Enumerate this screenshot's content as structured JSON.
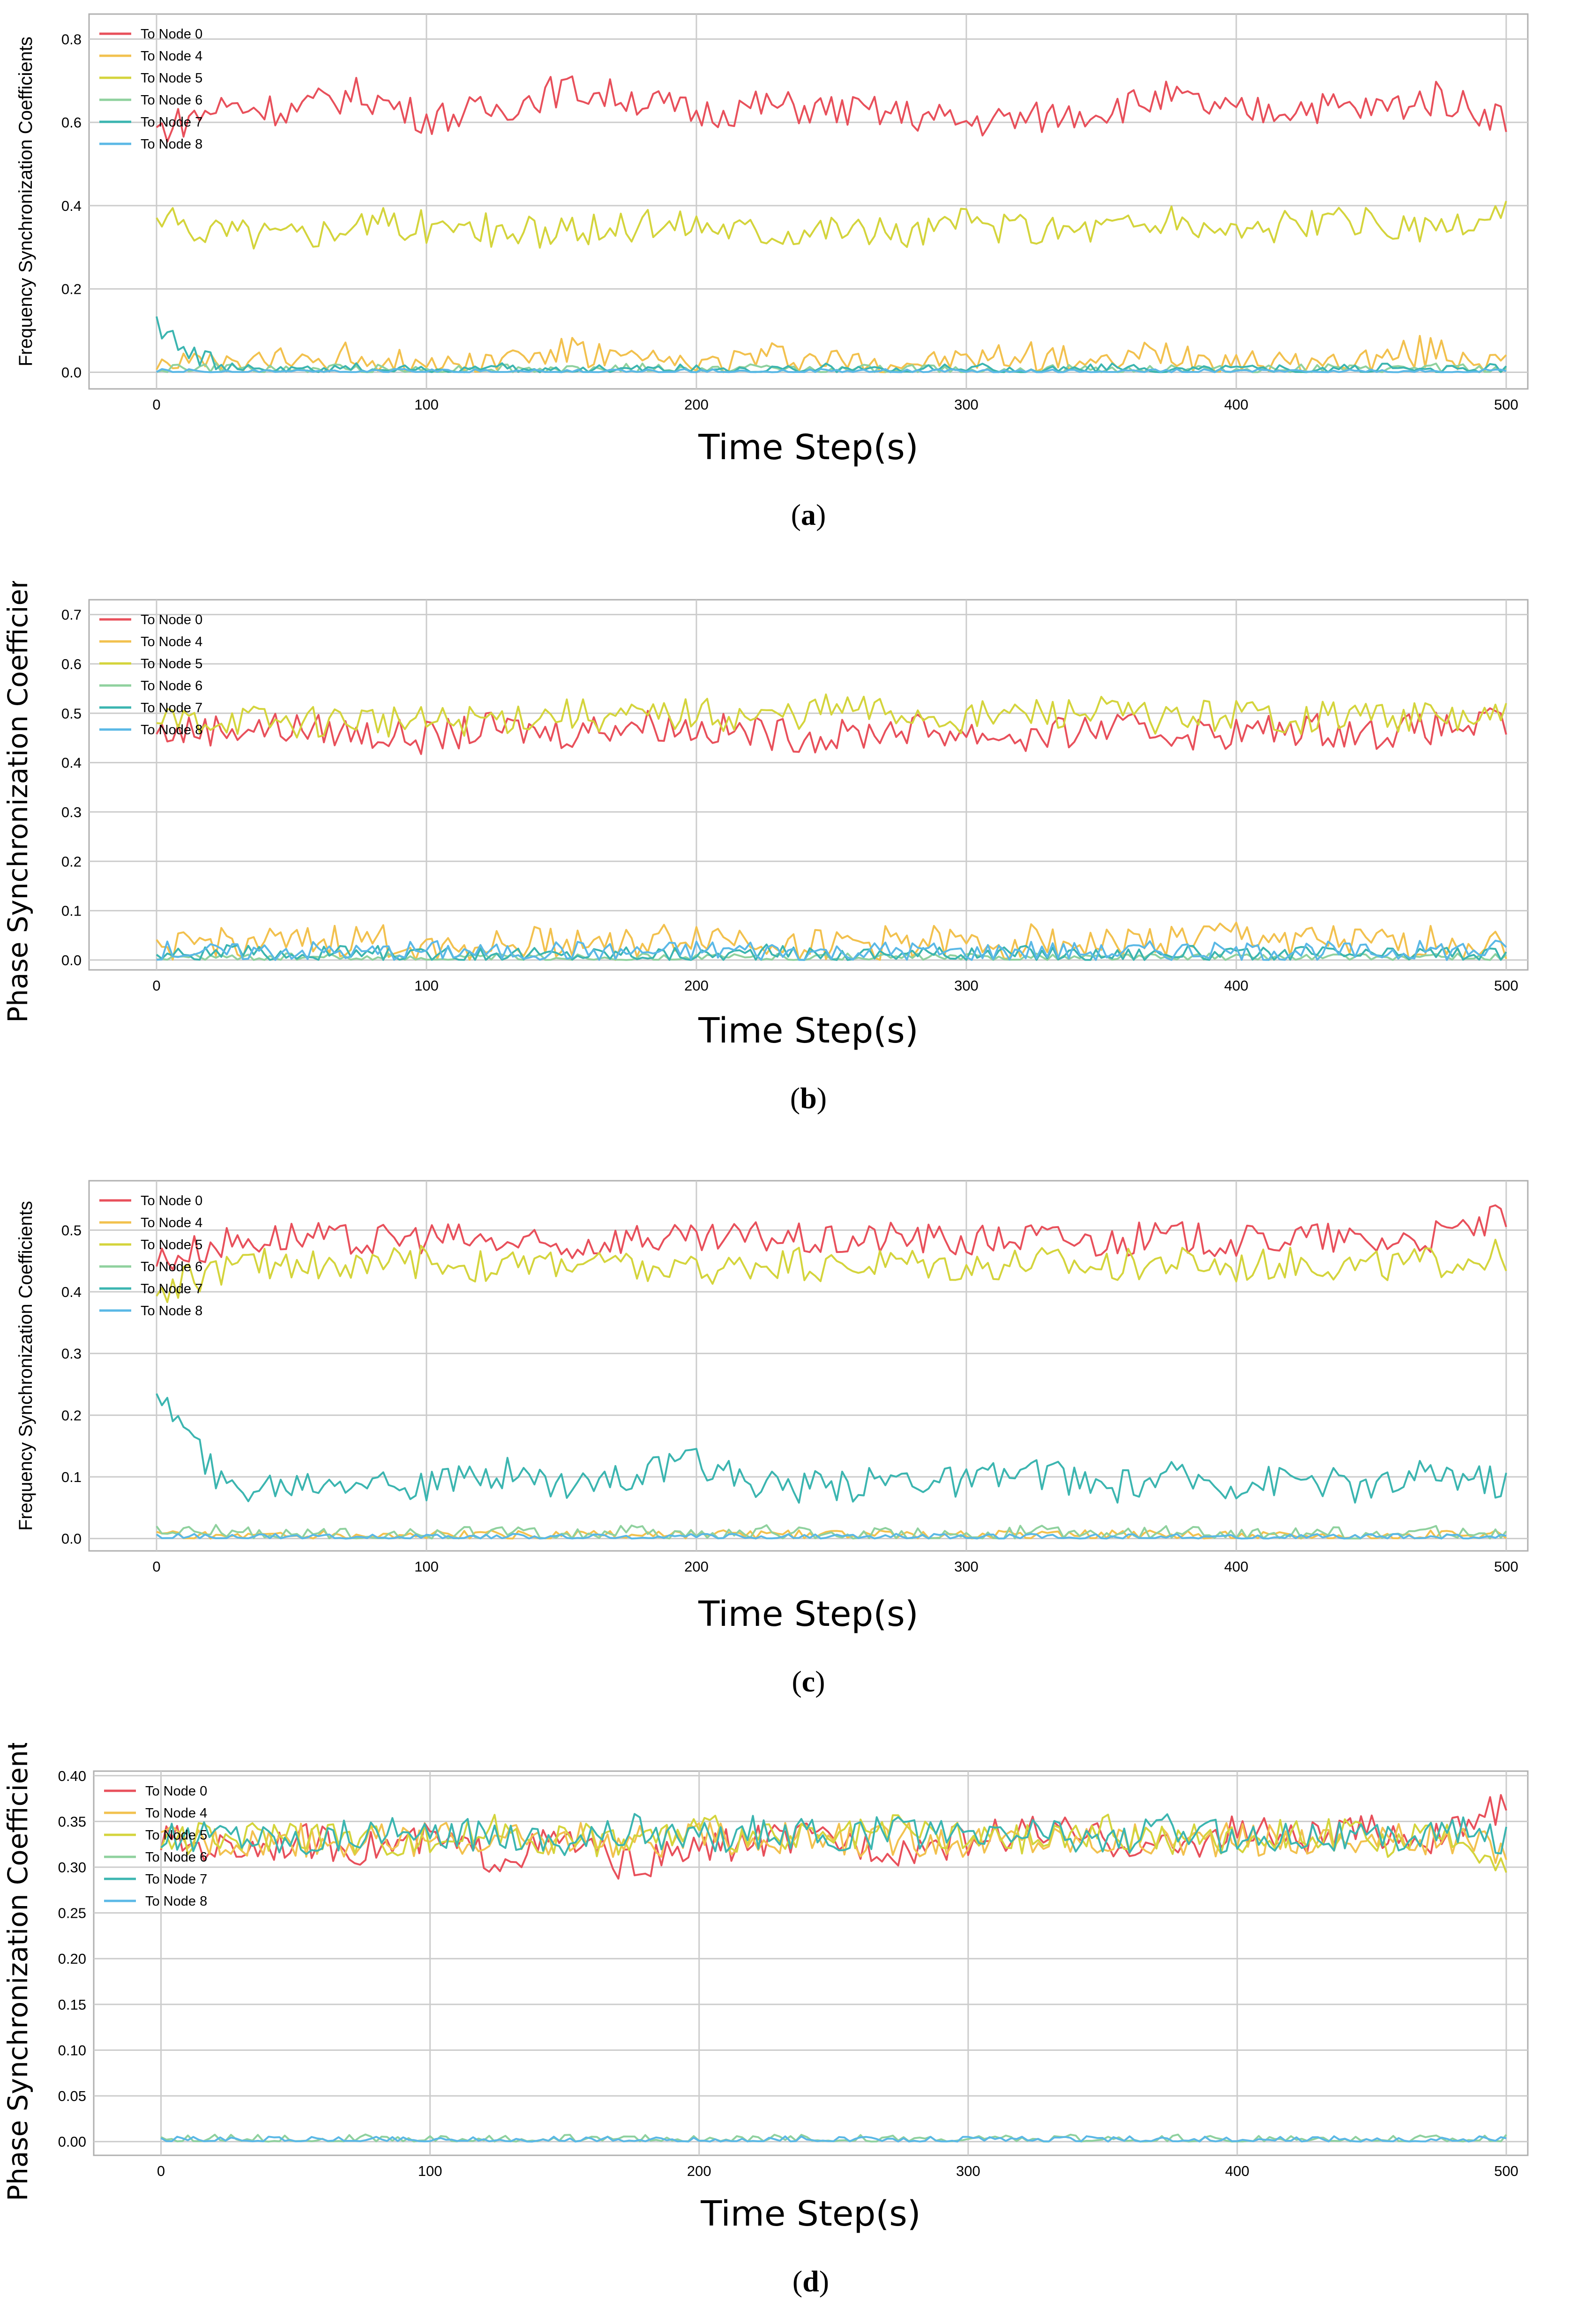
{
  "colors": {
    "node0": "#e8505b",
    "node4": "#f2c14e",
    "node5": "#d4d43c",
    "node6": "#8fd19e",
    "node7": "#3bb5b0",
    "node8": "#5ab8e6",
    "grid": "#cccccc",
    "frame": "#b0b0b0"
  },
  "chart_data": [
    {
      "id": "a",
      "type": "line",
      "title": "",
      "xlabel": "Time Step(s)",
      "ylabel": "Frequency Synchronization Coefficients",
      "ylabel_size": "small",
      "caption_letter": "a",
      "xlim": [
        -25,
        508
      ],
      "ylim": [
        -0.04,
        0.86
      ],
      "x_ticks": [
        0,
        100,
        200,
        300,
        400,
        500
      ],
      "x_tick_labels": [
        "0",
        "100",
        "200",
        "300",
        "400",
        "500"
      ],
      "y_ticks": [
        0.0,
        0.2,
        0.4,
        0.6,
        0.8
      ],
      "y_tick_labels": [
        "0.0",
        "0.2",
        "0.4",
        "0.6",
        "0.8"
      ],
      "grid": true,
      "legend_position": "top-left",
      "x": [
        0,
        25,
        50,
        75,
        100,
        125,
        150,
        175,
        200,
        225,
        250,
        275,
        300,
        325,
        350,
        375,
        400,
        425,
        450,
        475,
        500
      ],
      "series": [
        {
          "name": "To Node 0",
          "color_key": "node0",
          "values": [
            0.58,
            0.64,
            0.63,
            0.67,
            0.61,
            0.63,
            0.68,
            0.66,
            0.62,
            0.64,
            0.63,
            0.62,
            0.6,
            0.61,
            0.63,
            0.66,
            0.62,
            0.64,
            0.63,
            0.66,
            0.61
          ]
        },
        {
          "name": "To Node 4",
          "color_key": "node4",
          "values": [
            0.03,
            0.02,
            0.03,
            0.04,
            0.02,
            0.03,
            0.05,
            0.03,
            0.02,
            0.04,
            0.03,
            0.02,
            0.03,
            0.04,
            0.02,
            0.05,
            0.03,
            0.02,
            0.03,
            0.05,
            0.02
          ]
        },
        {
          "name": "To Node 5",
          "color_key": "node5",
          "values": [
            0.36,
            0.34,
            0.33,
            0.36,
            0.35,
            0.34,
            0.33,
            0.35,
            0.36,
            0.34,
            0.35,
            0.33,
            0.36,
            0.34,
            0.35,
            0.36,
            0.34,
            0.35,
            0.36,
            0.33,
            0.38
          ]
        },
        {
          "name": "To Node 6",
          "color_key": "node6",
          "values": [
            0.01,
            0.01,
            0.005,
            0.01,
            0.005,
            0.01,
            0.005,
            0.01,
            0.005,
            0.01,
            0.005,
            0.01,
            0.005,
            0.01,
            0.005,
            0.01,
            0.005,
            0.01,
            0.005,
            0.01,
            0.005
          ]
        },
        {
          "name": "To Node 7",
          "color_key": "node7",
          "values": [
            0.12,
            0.01,
            0.005,
            0.01,
            0.005,
            0.01,
            0.005,
            0.01,
            0.01,
            0.005,
            0.01,
            0.005,
            0.01,
            0.005,
            0.01,
            0.005,
            0.01,
            0.005,
            0.01,
            0.005,
            0.01
          ]
        },
        {
          "name": "To Node 8",
          "color_key": "node8",
          "values": [
            0.002,
            0.002,
            0.002,
            0.002,
            0.002,
            0.002,
            0.002,
            0.002,
            0.002,
            0.002,
            0.002,
            0.002,
            0.002,
            0.002,
            0.002,
            0.002,
            0.002,
            0.002,
            0.002,
            0.002,
            0.002
          ]
        }
      ]
    },
    {
      "id": "b",
      "type": "line",
      "title": "",
      "xlabel": "Time Step(s)",
      "ylabel": "Phase Synchronization Coefficients",
      "ylabel_size": "large",
      "caption_letter": "b",
      "xlim": [
        -25,
        508
      ],
      "ylim": [
        -0.02,
        0.73
      ],
      "x_ticks": [
        0,
        100,
        200,
        300,
        400,
        500
      ],
      "x_tick_labels": [
        "0",
        "100",
        "200",
        "300",
        "400",
        "500"
      ],
      "y_ticks": [
        0.0,
        0.1,
        0.2,
        0.3,
        0.4,
        0.5,
        0.6,
        0.7
      ],
      "y_tick_labels": [
        "0.0",
        "0.1",
        "0.2",
        "0.3",
        "0.4",
        "0.5",
        "0.6",
        "0.7"
      ],
      "grid": true,
      "legend_position": "top-left",
      "x": [
        0,
        25,
        50,
        75,
        100,
        125,
        150,
        175,
        200,
        225,
        250,
        275,
        300,
        325,
        350,
        375,
        400,
        425,
        450,
        475,
        500
      ],
      "series": [
        {
          "name": "To Node 0",
          "color_key": "node0",
          "values": [
            0.46,
            0.47,
            0.47,
            0.46,
            0.45,
            0.47,
            0.46,
            0.48,
            0.47,
            0.46,
            0.45,
            0.47,
            0.46,
            0.45,
            0.47,
            0.46,
            0.46,
            0.47,
            0.46,
            0.47,
            0.48
          ]
        },
        {
          "name": "To Node 4",
          "color_key": "node4",
          "values": [
            0.02,
            0.04,
            0.03,
            0.04,
            0.03,
            0.03,
            0.04,
            0.03,
            0.05,
            0.04,
            0.03,
            0.04,
            0.03,
            0.04,
            0.03,
            0.04,
            0.05,
            0.04,
            0.03,
            0.04,
            0.03
          ]
        },
        {
          "name": "To Node 5",
          "color_key": "node5",
          "values": [
            0.48,
            0.49,
            0.48,
            0.49,
            0.48,
            0.49,
            0.5,
            0.49,
            0.5,
            0.49,
            0.51,
            0.5,
            0.49,
            0.5,
            0.5,
            0.49,
            0.5,
            0.49,
            0.5,
            0.49,
            0.49
          ]
        },
        {
          "name": "To Node 6",
          "color_key": "node6",
          "values": [
            0.005,
            0.005,
            0.005,
            0.005,
            0.005,
            0.005,
            0.005,
            0.005,
            0.005,
            0.005,
            0.005,
            0.005,
            0.005,
            0.005,
            0.005,
            0.005,
            0.005,
            0.005,
            0.005,
            0.005,
            0.005
          ]
        },
        {
          "name": "To Node 7",
          "color_key": "node7",
          "values": [
            0.01,
            0.015,
            0.01,
            0.015,
            0.01,
            0.015,
            0.01,
            0.015,
            0.01,
            0.015,
            0.01,
            0.015,
            0.01,
            0.015,
            0.01,
            0.015,
            0.01,
            0.015,
            0.01,
            0.015,
            0.01
          ]
        },
        {
          "name": "To Node 8",
          "color_key": "node8",
          "values": [
            0.02,
            0.015,
            0.02,
            0.015,
            0.02,
            0.015,
            0.02,
            0.015,
            0.02,
            0.02,
            0.015,
            0.02,
            0.015,
            0.02,
            0.015,
            0.02,
            0.015,
            0.02,
            0.015,
            0.02,
            0.02
          ]
        }
      ]
    },
    {
      "id": "c",
      "type": "line",
      "title": "",
      "xlabel": "Time Step(s)",
      "ylabel": "Frequency Synchronization Coefficients",
      "ylabel_size": "small",
      "caption_letter": "c",
      "xlim": [
        -25,
        508
      ],
      "ylim": [
        -0.02,
        0.58
      ],
      "x_ticks": [
        0,
        100,
        200,
        300,
        400,
        500
      ],
      "x_tick_labels": [
        "0",
        "100",
        "200",
        "300",
        "400",
        "500"
      ],
      "y_ticks": [
        0.0,
        0.1,
        0.2,
        0.3,
        0.4,
        0.5
      ],
      "y_tick_labels": [
        "0.0",
        "0.1",
        "0.2",
        "0.3",
        "0.4",
        "0.5"
      ],
      "grid": true,
      "legend_position": "top-left",
      "x": [
        0,
        25,
        50,
        75,
        100,
        125,
        150,
        175,
        200,
        225,
        250,
        275,
        300,
        325,
        350,
        375,
        400,
        425,
        450,
        475,
        500
      ],
      "series": [
        {
          "name": "To Node 0",
          "color_key": "node0",
          "values": [
            0.45,
            0.48,
            0.49,
            0.48,
            0.49,
            0.48,
            0.47,
            0.49,
            0.48,
            0.49,
            0.48,
            0.49,
            0.48,
            0.49,
            0.48,
            0.49,
            0.48,
            0.49,
            0.48,
            0.49,
            0.52
          ]
        },
        {
          "name": "To Node 4",
          "color_key": "node4",
          "values": [
            0.005,
            0.005,
            0.005,
            0.005,
            0.005,
            0.005,
            0.005,
            0.005,
            0.005,
            0.005,
            0.005,
            0.005,
            0.005,
            0.005,
            0.005,
            0.005,
            0.005,
            0.005,
            0.005,
            0.005,
            0.005
          ]
        },
        {
          "name": "To Node 5",
          "color_key": "node5",
          "values": [
            0.4,
            0.44,
            0.45,
            0.44,
            0.45,
            0.44,
            0.45,
            0.44,
            0.43,
            0.45,
            0.44,
            0.45,
            0.44,
            0.45,
            0.44,
            0.45,
            0.44,
            0.45,
            0.44,
            0.45,
            0.46
          ]
        },
        {
          "name": "To Node 6",
          "color_key": "node6",
          "values": [
            0.01,
            0.01,
            0.005,
            0.01,
            0.005,
            0.01,
            0.005,
            0.01,
            0.005,
            0.01,
            0.005,
            0.01,
            0.005,
            0.01,
            0.005,
            0.01,
            0.005,
            0.01,
            0.005,
            0.01,
            0.005
          ]
        },
        {
          "name": "To Node 7",
          "color_key": "node7",
          "values": [
            0.24,
            0.08,
            0.09,
            0.1,
            0.08,
            0.11,
            0.09,
            0.1,
            0.12,
            0.09,
            0.08,
            0.1,
            0.09,
            0.11,
            0.08,
            0.1,
            0.09,
            0.1,
            0.08,
            0.11,
            0.09
          ]
        },
        {
          "name": "To Node 8",
          "color_key": "node8",
          "values": [
            0.002,
            0.002,
            0.002,
            0.002,
            0.002,
            0.002,
            0.002,
            0.002,
            0.002,
            0.002,
            0.002,
            0.002,
            0.002,
            0.002,
            0.002,
            0.002,
            0.002,
            0.002,
            0.002,
            0.002,
            0.002
          ]
        }
      ]
    },
    {
      "id": "d",
      "type": "line",
      "title": "",
      "xlabel": "Time Step(s)",
      "ylabel": "Phase Synchronization Coefficients",
      "ylabel_size": "large",
      "caption_letter": "d",
      "xlim": [
        -25,
        508
      ],
      "ylim": [
        -0.015,
        0.405
      ],
      "x_ticks": [
        0,
        100,
        200,
        300,
        400,
        500
      ],
      "x_tick_labels": [
        "0",
        "100",
        "200",
        "300",
        "400",
        "500"
      ],
      "y_ticks": [
        0.0,
        0.05,
        0.1,
        0.15,
        0.2,
        0.25,
        0.3,
        0.35,
        0.4
      ],
      "y_tick_labels": [
        "0.00",
        "0.05",
        "0.10",
        "0.15",
        "0.20",
        "0.25",
        "0.30",
        "0.35",
        "0.40"
      ],
      "grid": true,
      "legend_position": "top-left",
      "x": [
        0,
        25,
        50,
        75,
        100,
        125,
        150,
        175,
        200,
        225,
        250,
        275,
        300,
        325,
        350,
        375,
        400,
        425,
        450,
        475,
        500
      ],
      "series": [
        {
          "name": "To Node 0",
          "color_key": "node0",
          "values": [
            0.33,
            0.32,
            0.33,
            0.32,
            0.33,
            0.31,
            0.33,
            0.3,
            0.32,
            0.33,
            0.33,
            0.32,
            0.33,
            0.34,
            0.33,
            0.32,
            0.34,
            0.33,
            0.34,
            0.33,
            0.37
          ]
        },
        {
          "name": "To Node 4",
          "color_key": "node4",
          "values": [
            0.33,
            0.33,
            0.33,
            0.33,
            0.33,
            0.33,
            0.33,
            0.33,
            0.33,
            0.33,
            0.33,
            0.33,
            0.33,
            0.33,
            0.33,
            0.33,
            0.33,
            0.33,
            0.33,
            0.33,
            0.32
          ]
        },
        {
          "name": "To Node 5",
          "color_key": "node5",
          "values": [
            0.33,
            0.33,
            0.34,
            0.33,
            0.33,
            0.34,
            0.33,
            0.33,
            0.34,
            0.33,
            0.33,
            0.34,
            0.33,
            0.33,
            0.34,
            0.33,
            0.33,
            0.34,
            0.33,
            0.33,
            0.31
          ]
        },
        {
          "name": "To Node 6",
          "color_key": "node6",
          "values": [
            0.002,
            0.002,
            0.002,
            0.002,
            0.002,
            0.002,
            0.002,
            0.002,
            0.002,
            0.002,
            0.002,
            0.002,
            0.002,
            0.002,
            0.002,
            0.002,
            0.002,
            0.002,
            0.002,
            0.002,
            0.002
          ]
        },
        {
          "name": "To Node 7",
          "color_key": "node7",
          "values": [
            0.33,
            0.34,
            0.33,
            0.34,
            0.33,
            0.34,
            0.33,
            0.34,
            0.33,
            0.34,
            0.33,
            0.34,
            0.33,
            0.34,
            0.33,
            0.34,
            0.33,
            0.34,
            0.33,
            0.34,
            0.33
          ]
        },
        {
          "name": "To Node 8",
          "color_key": "node8",
          "values": [
            0.001,
            0.001,
            0.001,
            0.001,
            0.001,
            0.001,
            0.001,
            0.001,
            0.001,
            0.001,
            0.001,
            0.001,
            0.001,
            0.001,
            0.001,
            0.001,
            0.001,
            0.001,
            0.001,
            0.001,
            0.001
          ]
        }
      ]
    }
  ]
}
